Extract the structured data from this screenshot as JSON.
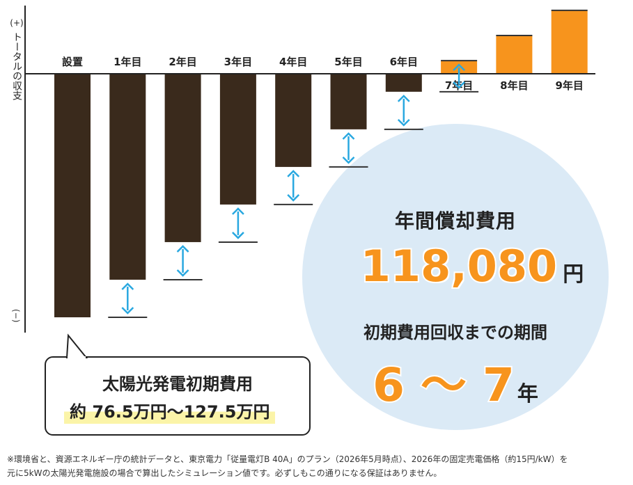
{
  "chart_data": {
    "type": "bar",
    "ylabel": "(+) トータルの収支",
    "y_minus_label": "(−)",
    "categories": [
      "設置",
      "1年目",
      "2年目",
      "3年目",
      "4年目",
      "5年目",
      "6年目",
      "7年目",
      "8年目",
      "9年目"
    ],
    "values": [
      -765000,
      -646920,
      -528840,
      -410760,
      -292680,
      -174600,
      -56520,
      61560,
      179640,
      297720
    ],
    "ylim": [
      -800000,
      320000
    ],
    "colors": {
      "negative": "#3a2a1c",
      "positive": "#f7941d",
      "arrow": "#29a8e0"
    }
  },
  "callout": {
    "title": "太陽光発電初期費用",
    "value": "約 76.5万円〜127.5万円"
  },
  "summary": {
    "title": "年間償却費用",
    "amount": "118,080",
    "amount_unit": "円",
    "subtitle": "初期費用回収までの期間",
    "period": "6 〜 7",
    "period_unit": "年"
  },
  "footnote": [
    "※環境省と、資源エネルギー庁の統計データと、東京電力「従量電灯B 40A」のプラン（2026年5月時点）、2026年の固定売電価格（約15円/kW）を",
    "元に5kWの太陽光発電施設の場合で算出したシミュレーション値です。必ずしもこの通りになる保証はありません。"
  ]
}
